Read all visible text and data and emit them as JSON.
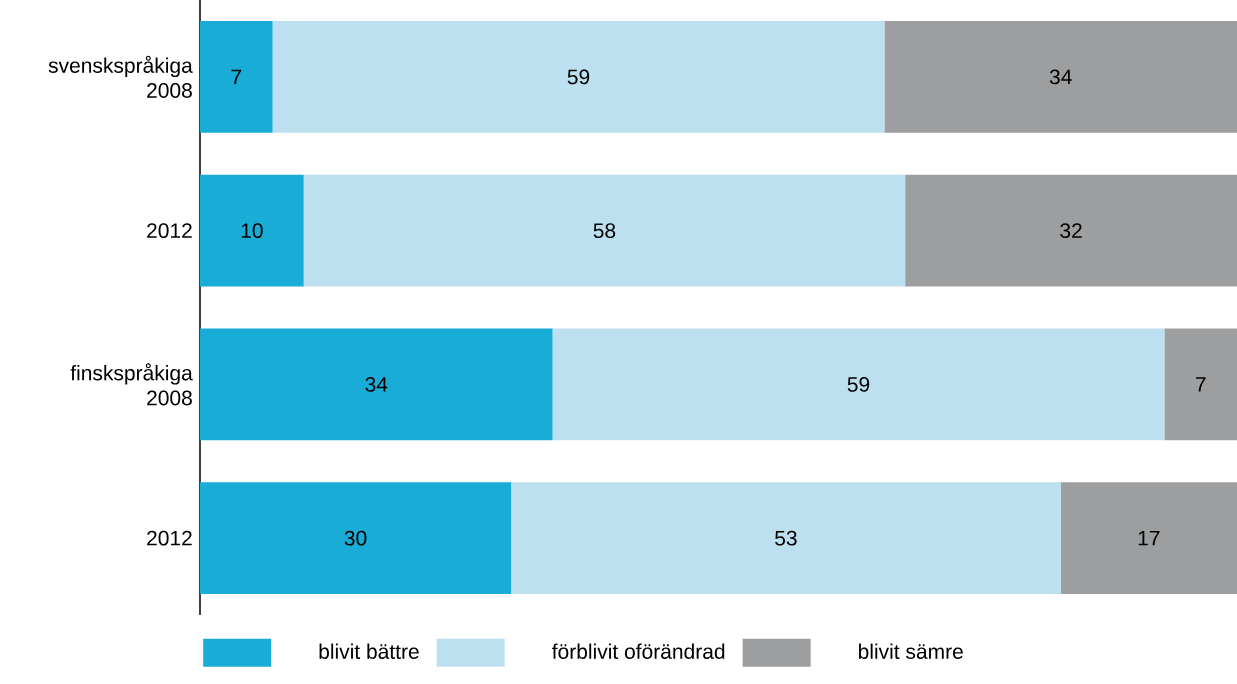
{
  "chart_data": {
    "type": "bar",
    "orientation": "horizontal",
    "stacked": true,
    "data_labels": true,
    "legend": "bottom",
    "categories": [
      "svenskspråkiga 2008",
      "2012",
      "finskspråkiga 2008",
      "2012"
    ],
    "series": [
      {
        "name": "blivit bättre",
        "color": "#19acd6",
        "values": [
          7,
          10,
          34,
          30
        ]
      },
      {
        "name": "förblivit oförändrad",
        "color": "#bde0f1",
        "values": [
          59,
          58,
          59,
          53
        ]
      },
      {
        "name": "blivit sämre",
        "color": "#9d9ea0",
        "values": [
          34,
          32,
          7,
          17
        ]
      }
    ]
  }
}
